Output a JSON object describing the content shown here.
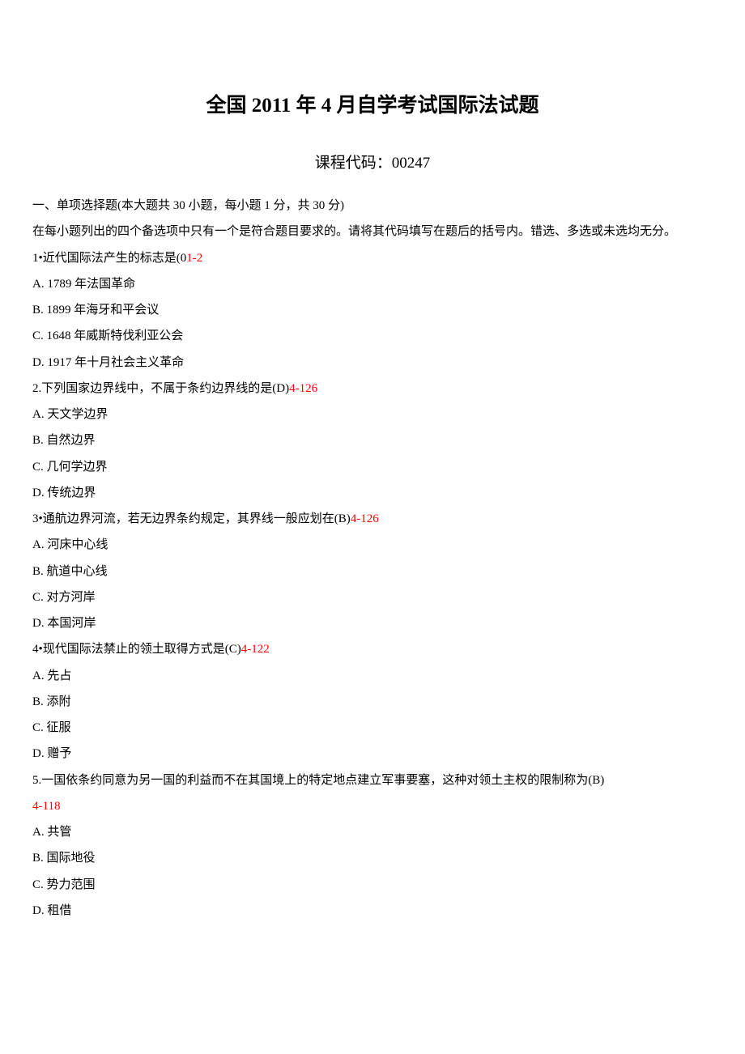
{
  "title": "全国 2011 年 4 月自学考试国际法试题",
  "subtitle": "课程代码：00247",
  "section_intro_1": "一、单项选择题(本大题共 30 小题，每小题 1 分，共 30 分)",
  "section_intro_2": "在每小题列出的四个备选项中只有一个是符合题目要求的。请将其代码填写在题后的括号内。错选、多选或未选均无分。",
  "questions": [
    {
      "stem_pre": "1•近代国际法产生的标志是(0",
      "stem_red": "1-2",
      "options": [
        "A. 1789 年法国革命",
        "B. 1899 年海牙和平会议",
        "C. 1648 年威斯特伐利亚公会",
        "D. 1917 年十月社会主义革命"
      ]
    },
    {
      "stem_pre": "2.下列国家边界线中，不属于条约边界线的是(D)",
      "stem_red": "4-126",
      "options": [
        "A. 天文学边界",
        "B. 自然边界",
        "C. 几何学边界",
        "D. 传统边界"
      ]
    },
    {
      "stem_pre": "3•通航边界河流，若无边界条约规定，其界线一般应划在(B)",
      "stem_red": "4-126",
      "options": [
        "A. 河床中心线",
        "B. 航道中心线",
        "C. 对方河岸",
        "D. 本国河岸"
      ]
    },
    {
      "stem_pre": "4•现代国际法禁止的领土取得方式是(C)",
      "stem_red": "4-122",
      "options": [
        "A. 先占",
        "B. 添附",
        "C. 征服",
        "D. 赠予"
      ]
    },
    {
      "stem_pre": "5.一国依条约同意为另一国的利益而不在其国境上的特定地点建立军事要塞，这种对领土主权的限制称为(B)",
      "stem_red": "4-118",
      "stem_red_newline": true,
      "options": [
        "A. 共管",
        "B. 国际地役",
        "C. 势力范围",
        "D. 租借"
      ]
    }
  ]
}
